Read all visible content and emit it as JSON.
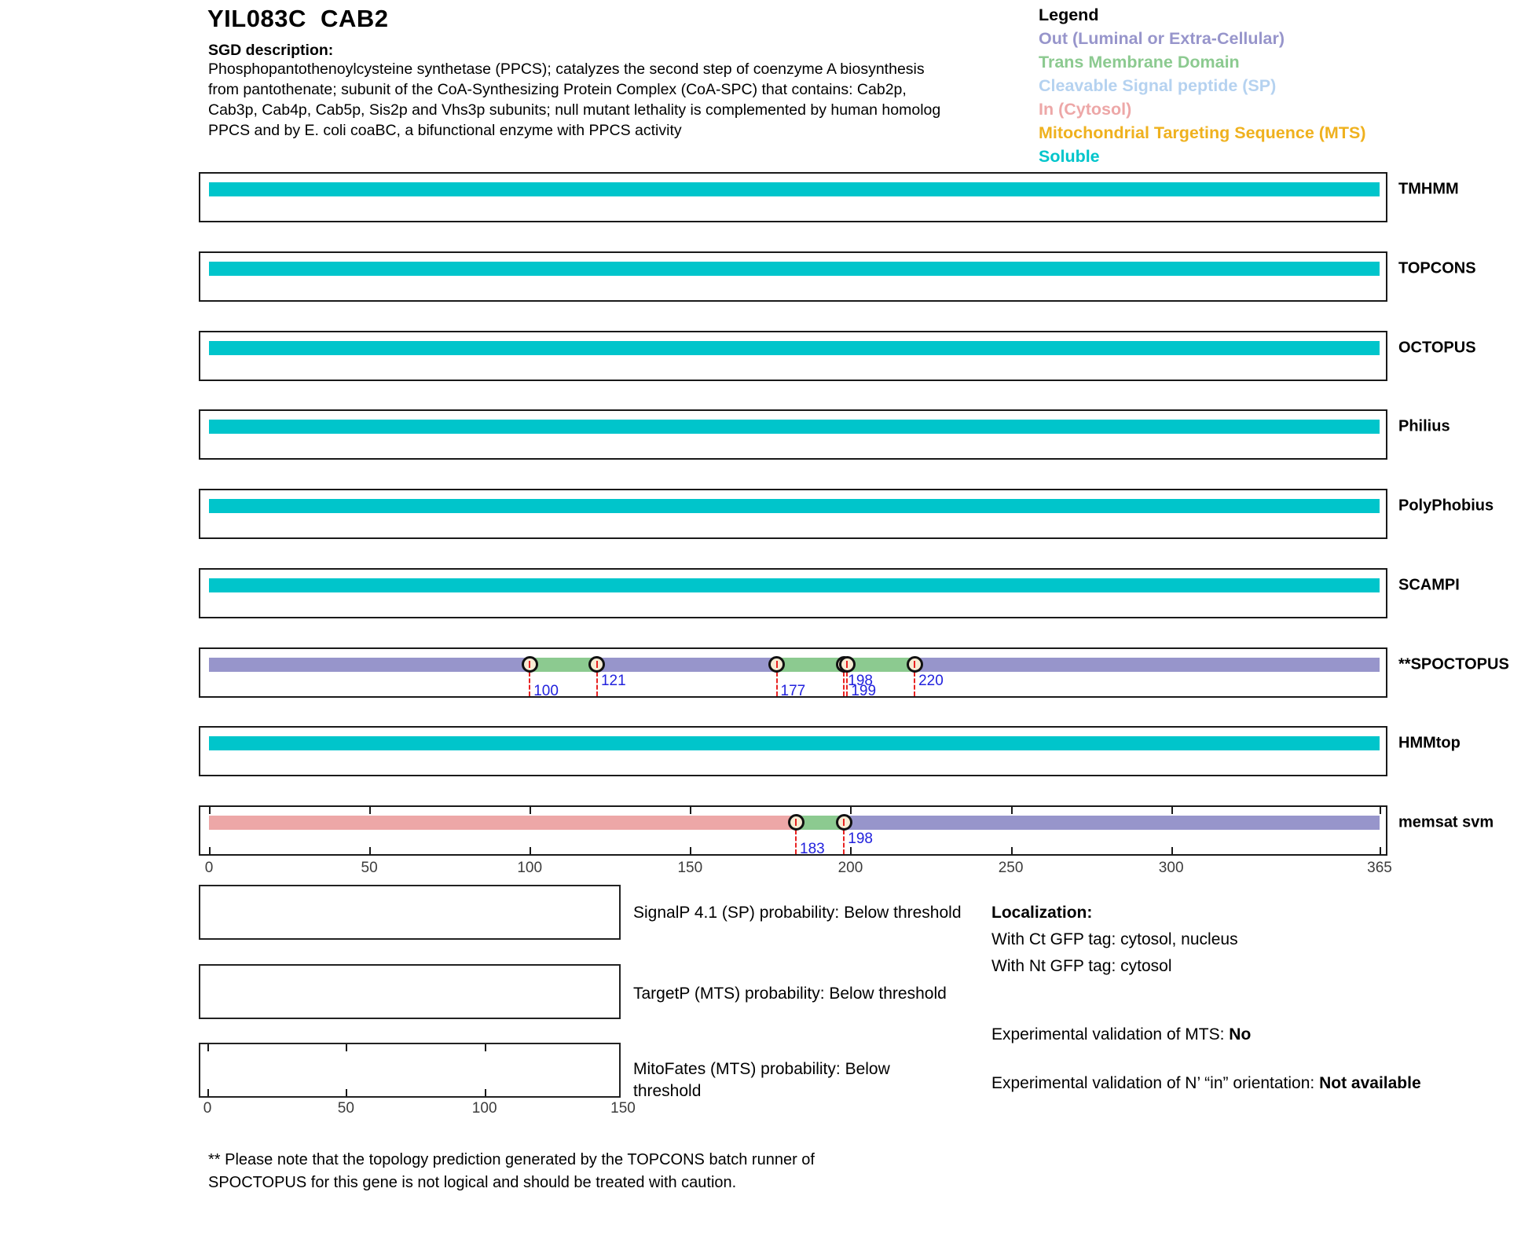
{
  "header": {
    "title": "YIL083C  CAB2",
    "sgd_label": "SGD description:",
    "description_lines": [
      "Phosphopantothenoylcysteine synthetase (PPCS); catalyzes the second step of coenzyme A biosynthesis",
      "from pantothenate; subunit of the CoA-Synthesizing Protein Complex (CoA-SPC) that contains: Cab2p,",
      "Cab3p, Cab4p, Cab5p, Sis2p and Vhs3p subunits; null mutant lethality is complemented by human homolog",
      "PPCS and by E. coli coaBC, a bifunctional enzyme with PPCS activity"
    ]
  },
  "legend": {
    "title": "Legend",
    "items": [
      {
        "key": "out",
        "label": "Out (Luminal or Extra-Cellular)",
        "color": "#9795cb"
      },
      {
        "key": "tm",
        "label": "Trans Membrane Domain",
        "color": "#8cca90"
      },
      {
        "key": "sp",
        "label": "Cleavable Signal peptide (SP)",
        "color": "#b5d2f0"
      },
      {
        "key": "in",
        "label": "In (Cytosol)",
        "color": "#eda7a7"
      },
      {
        "key": "mts",
        "label": "Mitochondrial Targeting Sequence (MTS)",
        "color": "#efb11e"
      },
      {
        "key": "soluble",
        "label": "Soluble",
        "color": "#00c5cb"
      }
    ]
  },
  "chart_data": {
    "type": "bar",
    "sequence_axis": {
      "min": 0,
      "max": 365,
      "ticks": [
        0,
        50,
        100,
        150,
        200,
        250,
        300,
        365
      ]
    },
    "colors": {
      "out": "#9795cb",
      "tm": "#8cca90",
      "sp": "#b5d2f0",
      "in": "#eda7a7",
      "mts": "#efb11e",
      "soluble": "#00c5cb",
      "marker_line": "#e82222",
      "marker_label": "#2222dd",
      "marker_fill": "#f7ecd4"
    },
    "tracks": [
      {
        "label": "TMHMM",
        "segments": [
          {
            "type": "soluble",
            "start": 0,
            "end": 365
          }
        ],
        "markers": [],
        "show_axis_ticks": false
      },
      {
        "label": "TOPCONS",
        "segments": [
          {
            "type": "soluble",
            "start": 0,
            "end": 365
          }
        ],
        "markers": [],
        "show_axis_ticks": false
      },
      {
        "label": "OCTOPUS",
        "segments": [
          {
            "type": "soluble",
            "start": 0,
            "end": 365
          }
        ],
        "markers": [],
        "show_axis_ticks": false
      },
      {
        "label": "Philius",
        "segments": [
          {
            "type": "soluble",
            "start": 0,
            "end": 365
          }
        ],
        "markers": [],
        "show_axis_ticks": false
      },
      {
        "label": "PolyPhobius",
        "segments": [
          {
            "type": "soluble",
            "start": 0,
            "end": 365
          }
        ],
        "markers": [],
        "show_axis_ticks": false
      },
      {
        "label": "SCAMPI",
        "segments": [
          {
            "type": "soluble",
            "start": 0,
            "end": 365
          }
        ],
        "markers": [],
        "show_axis_ticks": false
      },
      {
        "label": "**SPOCTOPUS",
        "segments": [
          {
            "type": "out",
            "start": 0,
            "end": 100
          },
          {
            "type": "tm",
            "start": 100,
            "end": 121
          },
          {
            "type": "out",
            "start": 121,
            "end": 177
          },
          {
            "type": "tm",
            "start": 177,
            "end": 198
          },
          {
            "type": "out",
            "start": 198,
            "end": 199
          },
          {
            "type": "tm",
            "start": 199,
            "end": 220
          },
          {
            "type": "out",
            "start": 220,
            "end": 365
          }
        ],
        "markers": [
          {
            "pos": 100,
            "row": "lower"
          },
          {
            "pos": 121,
            "row": "upper"
          },
          {
            "pos": 177,
            "row": "lower"
          },
          {
            "pos": 198,
            "row": "upper"
          },
          {
            "pos": 199,
            "row": "lower"
          },
          {
            "pos": 220,
            "row": "upper"
          }
        ],
        "show_axis_ticks": false
      },
      {
        "label": "HMMtop",
        "segments": [
          {
            "type": "soluble",
            "start": 0,
            "end": 365
          }
        ],
        "markers": [],
        "show_axis_ticks": false
      },
      {
        "label": "memsat svm",
        "segments": [
          {
            "type": "in",
            "start": 0,
            "end": 183
          },
          {
            "type": "tm",
            "start": 183,
            "end": 198
          },
          {
            "type": "out",
            "start": 198,
            "end": 365
          }
        ],
        "markers": [
          {
            "pos": 183,
            "row": "lower"
          },
          {
            "pos": 198,
            "row": "upper"
          }
        ],
        "show_axis_ticks": true
      }
    ],
    "probability_plots": [
      {
        "label_lines": [
          "SignalP 4.1 (SP) probability: Below threshold"
        ],
        "axis_labels": null,
        "values": []
      },
      {
        "label_lines": [
          "TargetP (MTS) probability: Below threshold"
        ],
        "axis_labels": null,
        "values": []
      },
      {
        "label_lines": [
          "MitoFates (MTS) probability: Below",
          "threshold"
        ],
        "axis_labels": [
          0,
          50,
          100,
          150
        ],
        "values": []
      }
    ]
  },
  "localization": {
    "title": "Localization:",
    "gfp_lines": [
      "With Ct GFP tag: cytosol, nucleus",
      "With Nt GFP tag: cytosol"
    ],
    "mts_label": "Experimental validation of MTS: ",
    "mts_value": "No",
    "orientation_label": "Experimental validation of N’ “in” orientation: ",
    "orientation_value": "Not available"
  },
  "footnote_lines": [
    "** Please note that the topology prediction generated by the TOPCONS batch runner of",
    "SPOCTOPUS for this gene is not logical and should be treated with caution."
  ]
}
